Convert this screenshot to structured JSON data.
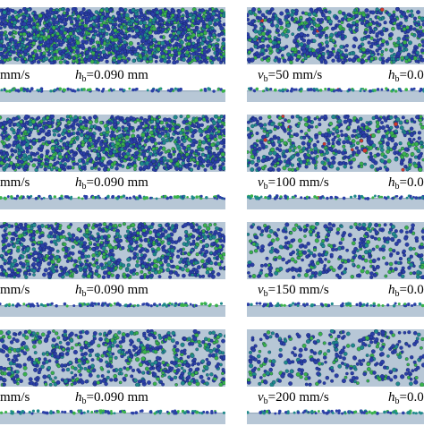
{
  "panels": [
    {
      "col": "left",
      "row": 0,
      "left_text": "mm/s",
      "h_symbol": "h",
      "h_sub": "b",
      "h_value": "=0.090 mm",
      "density": 1.0
    },
    {
      "col": "right",
      "row": 0,
      "v_symbol": "v",
      "v_sub": "b",
      "v_value": "=50 mm/s",
      "h_symbol": "h",
      "h_sub": "b",
      "h_value": "=0.0",
      "density": 0.55,
      "red": true
    },
    {
      "col": "left",
      "row": 1,
      "left_text": "mm/s",
      "h_symbol": "h",
      "h_sub": "b",
      "h_value": "=0.090 mm",
      "density": 0.75
    },
    {
      "col": "right",
      "row": 1,
      "v_symbol": "v",
      "v_sub": "b",
      "v_value": "=100 mm/s",
      "h_symbol": "h",
      "h_sub": "b",
      "h_value": "=0.0",
      "density": 0.45,
      "red": true
    },
    {
      "col": "left",
      "row": 2,
      "left_text": "mm/s",
      "h_symbol": "h",
      "h_sub": "b",
      "h_value": "=0.090 mm",
      "density": 0.55
    },
    {
      "col": "right",
      "row": 2,
      "v_symbol": "v",
      "v_sub": "b",
      "v_value": "=150 mm/s",
      "h_symbol": "h",
      "h_sub": "b",
      "h_value": "=0.0",
      "density": 0.3
    },
    {
      "col": "left",
      "row": 3,
      "left_text": "mm/s",
      "h_symbol": "h",
      "h_sub": "b",
      "h_value": "=0.090 mm",
      "density": 0.4
    },
    {
      "col": "right",
      "row": 3,
      "v_symbol": "v",
      "v_sub": "b",
      "v_value": "=200 mm/s",
      "h_symbol": "h",
      "h_sub": "b",
      "h_value": "=0.0",
      "density": 0.25
    }
  ],
  "colors": {
    "substrate": "#b7c7d6",
    "substrate_edge": "#97aabd",
    "particle_blue": "#2a3fa6",
    "particle_teal": "#1f8a8a",
    "particle_green": "#39b24a",
    "particle_red": "#d23a2a"
  }
}
